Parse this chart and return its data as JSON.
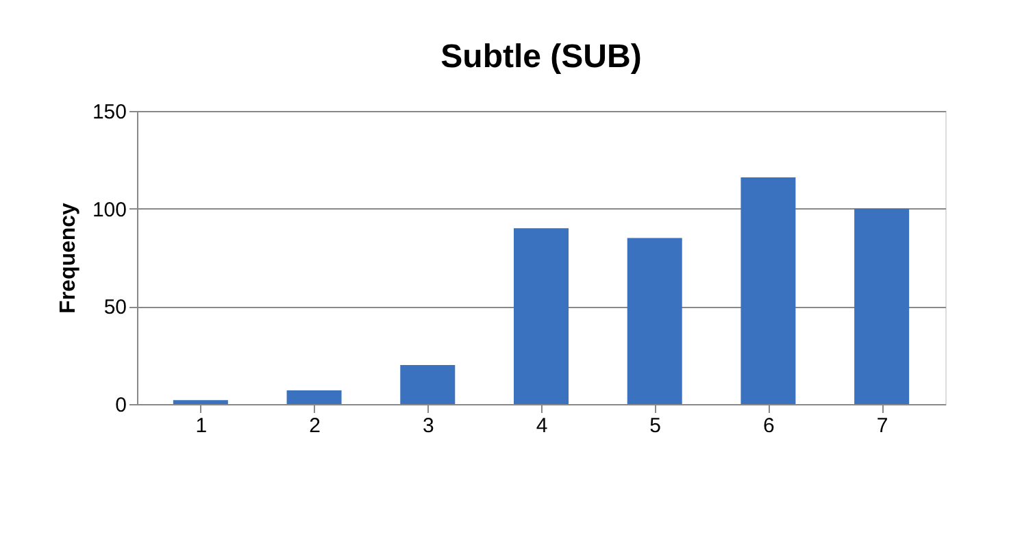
{
  "chart_data": {
    "type": "bar",
    "title": "Subtle (SUB)",
    "ylabel": "Frequency",
    "categories": [
      "1",
      "2",
      "3",
      "4",
      "5",
      "6",
      "7"
    ],
    "values": [
      2,
      7,
      20,
      90,
      85,
      116,
      100
    ],
    "color": "#3a72bf",
    "ylim": [
      0,
      150
    ],
    "yticks": [
      0,
      50,
      100,
      150
    ],
    "grid": "y"
  }
}
